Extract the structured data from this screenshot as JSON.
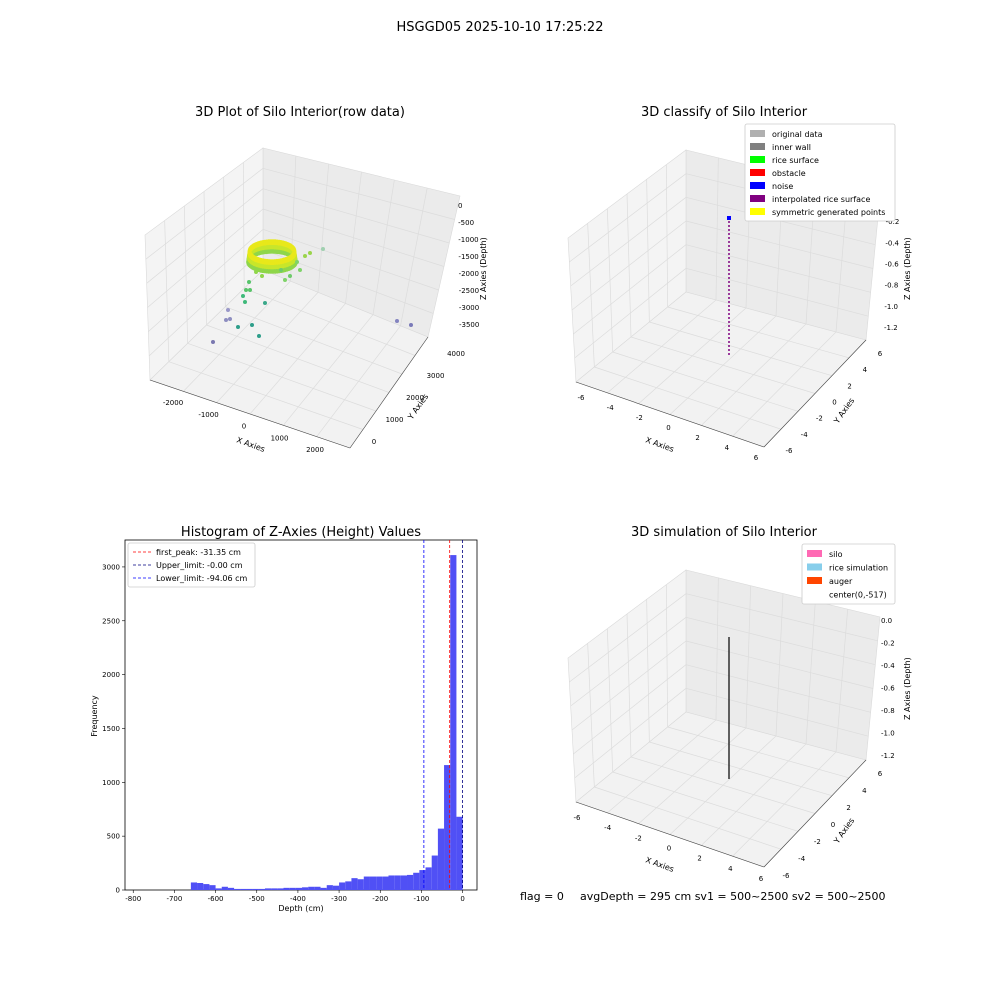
{
  "figure": {
    "title": "HSGGD05 2025-10-10 17:25:22"
  },
  "panels": {
    "raw3d": {
      "title": "3D Plot of Silo Interior(row data)",
      "xlabel": "X Axies",
      "ylabel": "Y Axies",
      "zlabel": "Z Axies (Depth)",
      "xticks": [
        "-2000",
        "-1000",
        "0",
        "1000",
        "2000"
      ],
      "yticks": [
        "0",
        "1000",
        "2000",
        "3000",
        "4000"
      ],
      "zticks": [
        "0",
        "-500",
        "-1000",
        "-1500",
        "-2000",
        "-2500",
        "-3000",
        "-3500"
      ]
    },
    "classify3d": {
      "title": "3D classify of Silo Interior",
      "xlabel": "X Axies",
      "ylabel": "Y Axies",
      "zlabel": "Z Axies (Depth)",
      "xticks": [
        "-6",
        "-4",
        "-2",
        "0",
        "2",
        "4",
        "6"
      ],
      "yticks": [
        "-6",
        "-4",
        "-2",
        "0",
        "2",
        "4",
        "6"
      ],
      "zticks": [
        "0",
        "-0.2",
        "-0.4",
        "-0.6",
        "-0.8",
        "-1.0",
        "-1.2"
      ],
      "legend": [
        {
          "label": "original data",
          "color": "#b0b0b0"
        },
        {
          "label": "inner wall",
          "color": "#808080"
        },
        {
          "label": "rice surface",
          "color": "#00ff00"
        },
        {
          "label": "obstacle",
          "color": "#ff0000"
        },
        {
          "label": "noise",
          "color": "#0000ff"
        },
        {
          "label": "interpolated rice surface",
          "color": "#800080"
        },
        {
          "label": "symmetric generated points",
          "color": "#ffff00"
        }
      ]
    },
    "simulation3d": {
      "title": "3D simulation of Silo Interior",
      "xlabel": "X Axies",
      "ylabel": "Y Axies",
      "zlabel": "Z Axies (Depth)",
      "xticks": [
        "-6",
        "-4",
        "-2",
        "0",
        "2",
        "4",
        "6"
      ],
      "yticks": [
        "-6",
        "-4",
        "-2",
        "0",
        "2",
        "4",
        "6"
      ],
      "zticks": [
        "0.0",
        "-0.2",
        "-0.4",
        "-0.6",
        "-0.8",
        "-1.0",
        "-1.2"
      ],
      "legend": [
        {
          "label": "silo",
          "color": "#ff69b4"
        },
        {
          "label": "rice simulation",
          "color": "#87ceeb"
        },
        {
          "label": "auger",
          "color": "#ff4500"
        },
        {
          "label": "center(0,-517)",
          "color": ""
        }
      ]
    },
    "footer": {
      "flag": "flag = 0",
      "stats": "avgDepth = 295 cm  sv1 = 500~2500  sv2 = 500~2500"
    }
  },
  "chart_data": {
    "type": "bar",
    "title": "Histogram of Z-Axies (Height) Values",
    "xlabel": "Depth (cm)",
    "ylabel": "Frequency",
    "xlim": [
      -820,
      35
    ],
    "ylim": [
      0,
      3250
    ],
    "xticks": [
      -800,
      -700,
      -600,
      -500,
      -400,
      -300,
      -200,
      -100,
      0
    ],
    "yticks": [
      0,
      500,
      1000,
      1500,
      2000,
      2500,
      3000
    ],
    "bin_width": 15,
    "bins": [
      {
        "x0": -660,
        "count": 70
      },
      {
        "x0": -645,
        "count": 65
      },
      {
        "x0": -630,
        "count": 55
      },
      {
        "x0": -615,
        "count": 45
      },
      {
        "x0": -600,
        "count": 15
      },
      {
        "x0": -585,
        "count": 30
      },
      {
        "x0": -570,
        "count": 20
      },
      {
        "x0": -555,
        "count": 10
      },
      {
        "x0": -540,
        "count": 10
      },
      {
        "x0": -525,
        "count": 10
      },
      {
        "x0": -510,
        "count": 10
      },
      {
        "x0": -495,
        "count": 10
      },
      {
        "x0": -480,
        "count": 15
      },
      {
        "x0": -465,
        "count": 15
      },
      {
        "x0": -450,
        "count": 15
      },
      {
        "x0": -435,
        "count": 20
      },
      {
        "x0": -420,
        "count": 20
      },
      {
        "x0": -405,
        "count": 20
      },
      {
        "x0": -390,
        "count": 25
      },
      {
        "x0": -375,
        "count": 30
      },
      {
        "x0": -360,
        "count": 30
      },
      {
        "x0": -345,
        "count": 20
      },
      {
        "x0": -330,
        "count": 45
      },
      {
        "x0": -315,
        "count": 40
      },
      {
        "x0": -300,
        "count": 70
      },
      {
        "x0": -285,
        "count": 80
      },
      {
        "x0": -270,
        "count": 110
      },
      {
        "x0": -255,
        "count": 100
      },
      {
        "x0": -240,
        "count": 125
      },
      {
        "x0": -225,
        "count": 125
      },
      {
        "x0": -210,
        "count": 125
      },
      {
        "x0": -195,
        "count": 125
      },
      {
        "x0": -180,
        "count": 135
      },
      {
        "x0": -165,
        "count": 135
      },
      {
        "x0": -150,
        "count": 135
      },
      {
        "x0": -135,
        "count": 140
      },
      {
        "x0": -120,
        "count": 160
      },
      {
        "x0": -105,
        "count": 185
      },
      {
        "x0": -90,
        "count": 210
      },
      {
        "x0": -75,
        "count": 320
      },
      {
        "x0": -60,
        "count": 570
      },
      {
        "x0": -45,
        "count": 1160
      },
      {
        "x0": -30,
        "count": 3110
      },
      {
        "x0": -15,
        "count": 680
      }
    ],
    "lines": [
      {
        "label": "first_peak: -31.35 cm",
        "x": -31.35,
        "color": "#ff0000"
      },
      {
        "label": "Upper_limit: -0.00 cm",
        "x": 0.0,
        "color": "#000080"
      },
      {
        "label": "Lower_limit: -94.06 cm",
        "x": -94.06,
        "color": "#0000ff"
      }
    ],
    "bar_color": "#5050f5",
    "legend_position": "upper-left"
  }
}
